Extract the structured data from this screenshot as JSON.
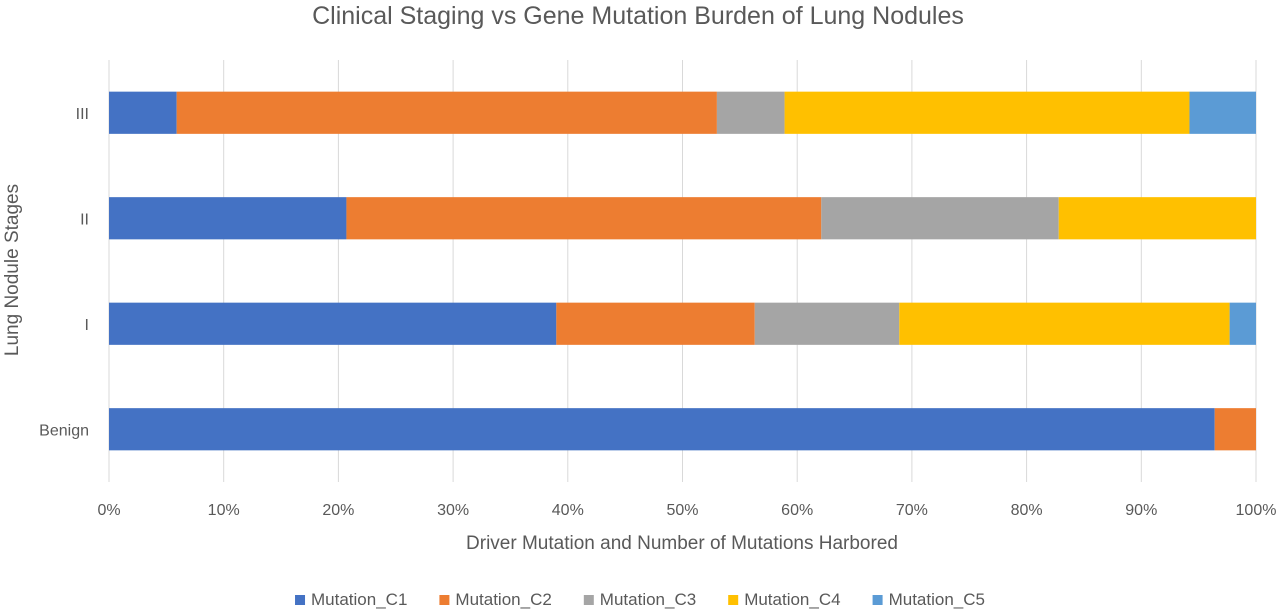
{
  "chart_data": {
    "type": "bar",
    "orientation": "horizontal",
    "stacked": "percent",
    "title": "Clinical Staging vs Gene Mutation Burden of Lung Nodules",
    "xlabel": "Driver Mutation and Number of Mutations Harbored",
    "ylabel": "Lung Nodule Stages",
    "xlim": [
      0,
      100
    ],
    "x_ticks": [
      "0%",
      "10%",
      "20%",
      "30%",
      "40%",
      "50%",
      "60%",
      "70%",
      "80%",
      "90%",
      "100%"
    ],
    "categories": [
      "Benign",
      "I",
      "II",
      "III"
    ],
    "series": [
      {
        "name": "Mutation_C1",
        "color": "#4472C4",
        "values": [
          96.4,
          39.0,
          20.7,
          5.9
        ]
      },
      {
        "name": "Mutation_C2",
        "color": "#ED7D31",
        "values": [
          3.6,
          17.3,
          41.4,
          47.1
        ]
      },
      {
        "name": "Mutation_C3",
        "color": "#A5A5A5",
        "values": [
          0,
          12.6,
          20.7,
          5.9
        ]
      },
      {
        "name": "Mutation_C4",
        "color": "#FFC000",
        "values": [
          0,
          28.8,
          17.2,
          35.3
        ]
      },
      {
        "name": "Mutation_C5",
        "color": "#5B9BD5",
        "values": [
          0,
          2.3,
          0,
          5.8
        ]
      }
    ],
    "grid": "vertical",
    "legend_position": "bottom"
  }
}
